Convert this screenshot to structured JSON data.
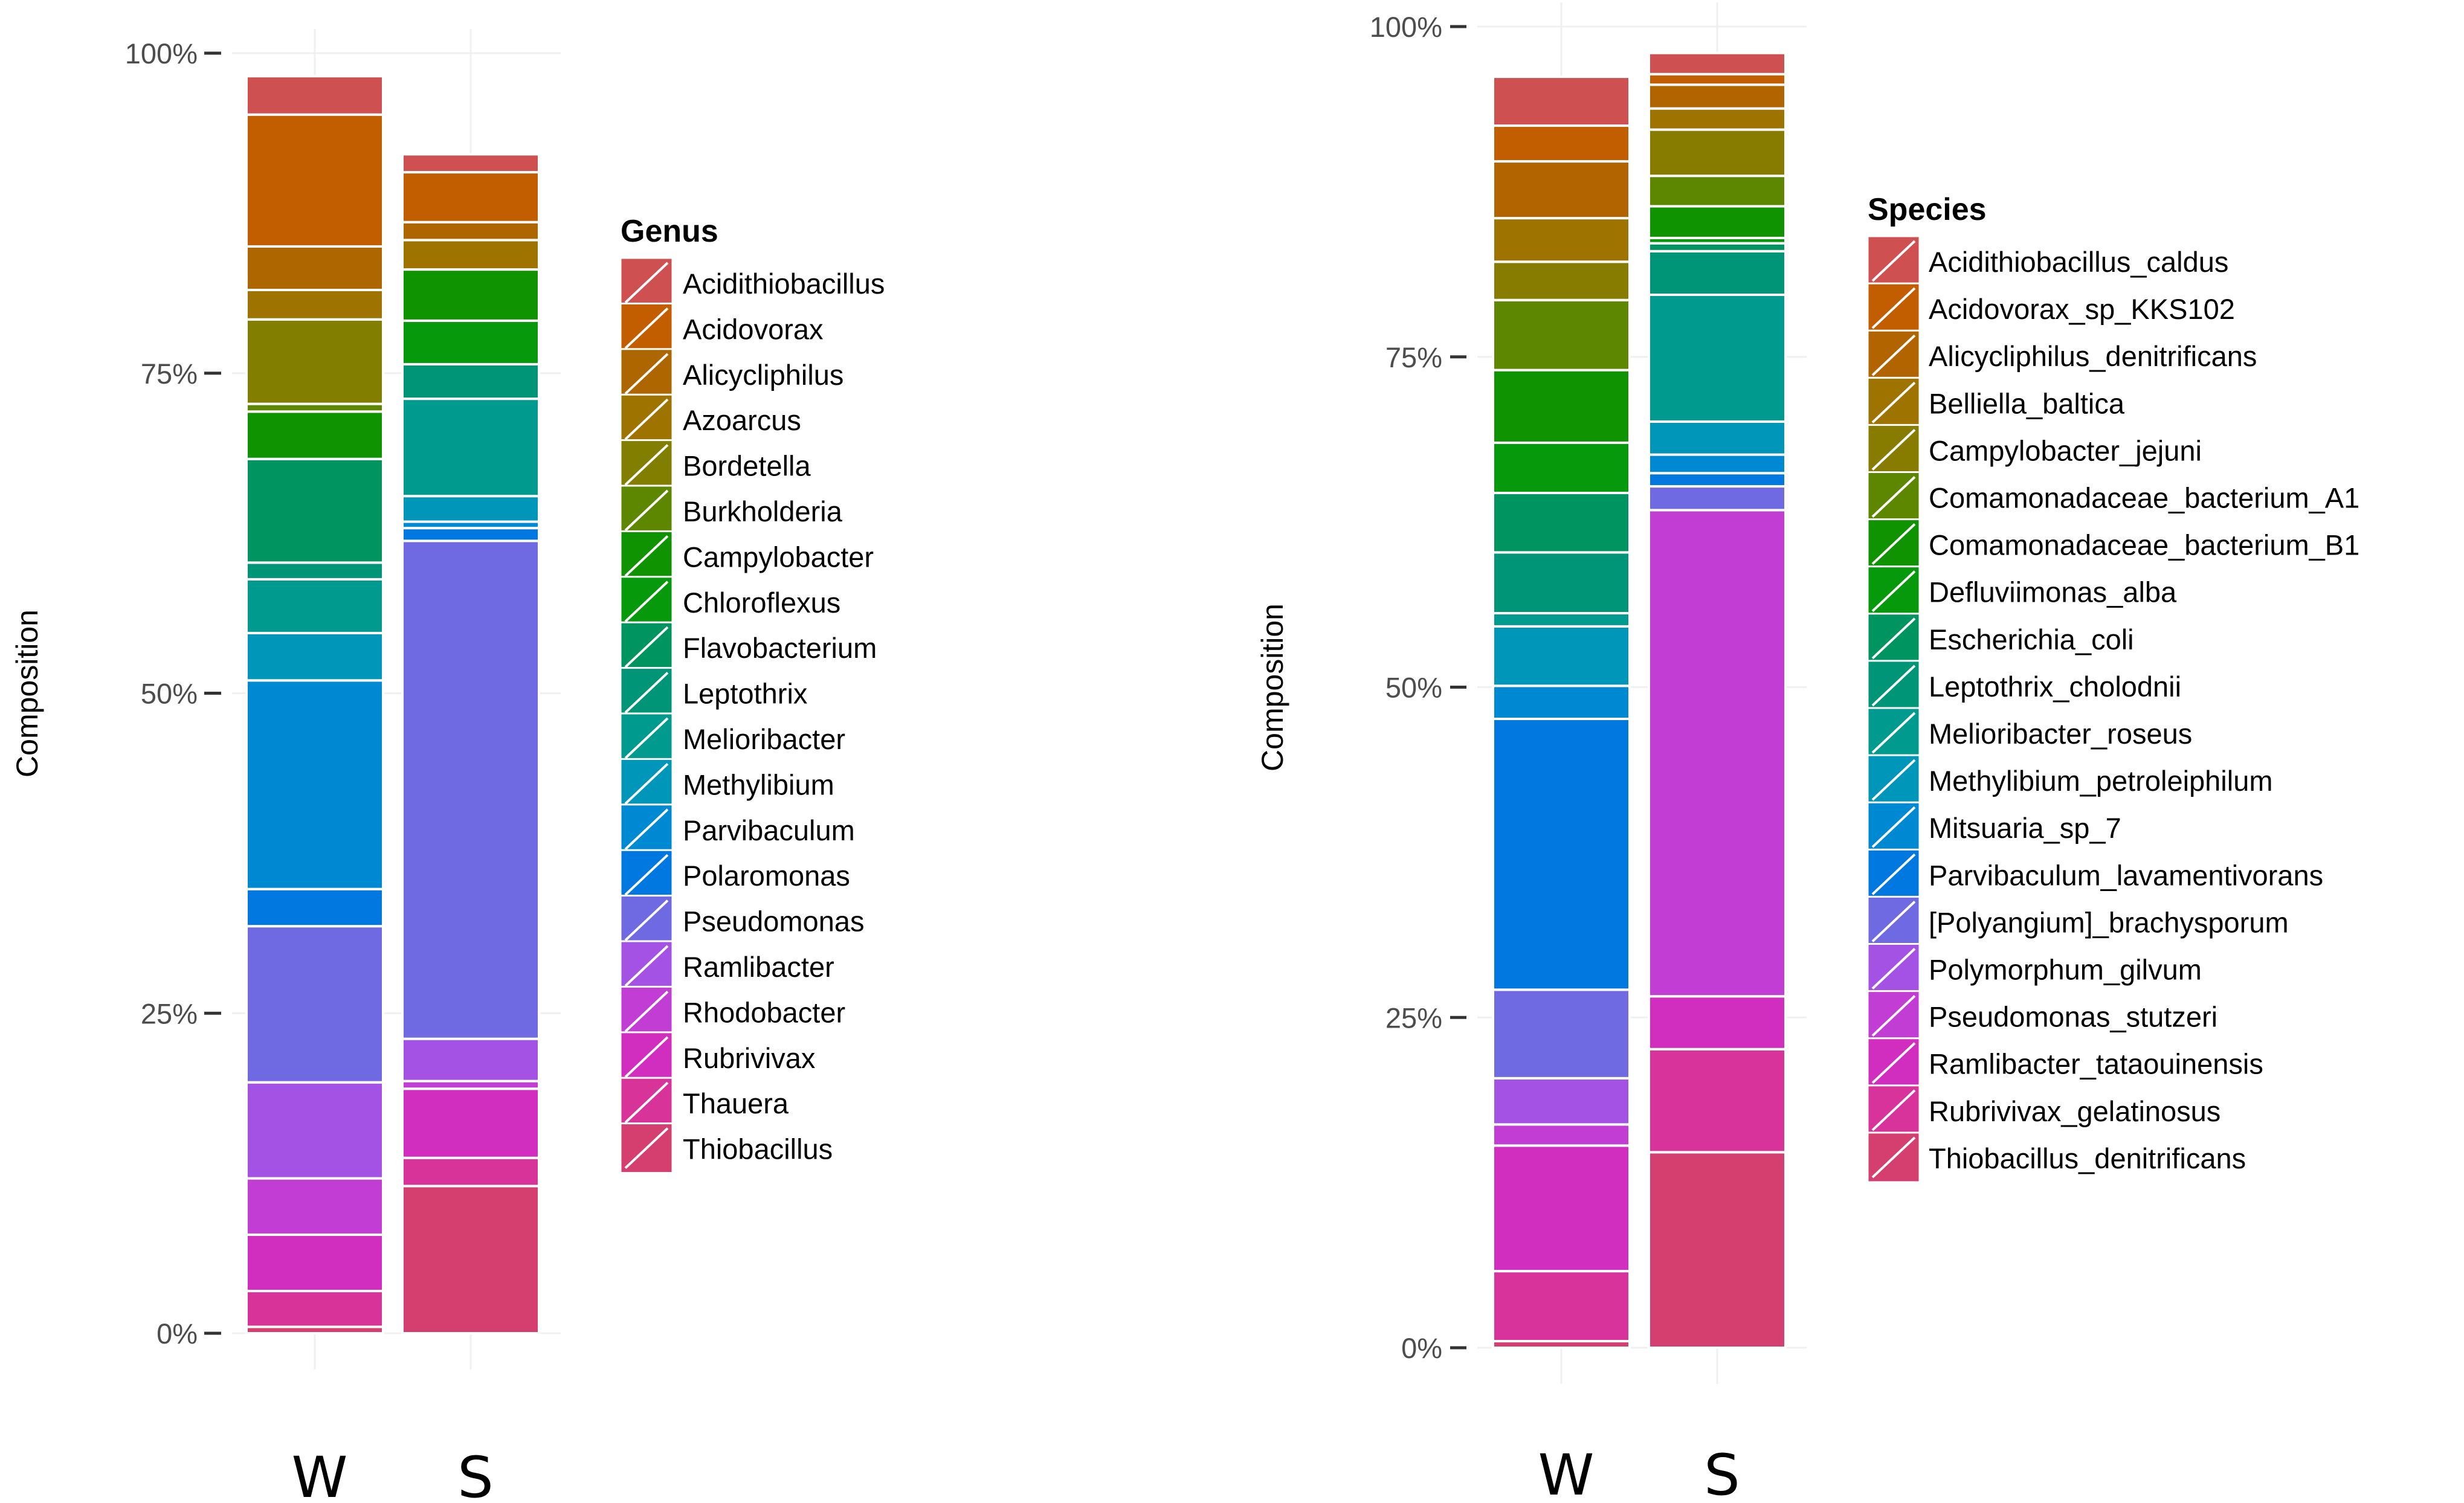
{
  "chart_data": [
    {
      "type": "bar",
      "stacked": true,
      "ylabel": "Composition",
      "ylim": [
        0,
        100
      ],
      "yticks": [
        "0%",
        "25%",
        "50%",
        "75%",
        "100%"
      ],
      "categories": [
        "W",
        "S"
      ],
      "legend_title": "Genus",
      "legend_position": "right",
      "series": [
        {
          "name": "Acidithiobacillus",
          "color": "#CE5050",
          "values": [
            3.0,
            1.4
          ]
        },
        {
          "name": "Acidovorax",
          "color": "#C25D00",
          "values": [
            10.3,
            3.9
          ]
        },
        {
          "name": "Alicycliphilus",
          "color": "#AE6600",
          "values": [
            3.4,
            1.4
          ]
        },
        {
          "name": "Azoarcus",
          "color": "#9F7300",
          "values": [
            2.3,
            2.3
          ]
        },
        {
          "name": "Bordetella",
          "color": "#827E00",
          "values": [
            6.6,
            0.0
          ]
        },
        {
          "name": "Burkholderia",
          "color": "#5E8700",
          "values": [
            0.6,
            0.0
          ]
        },
        {
          "name": "Campylobacter",
          "color": "#0F9300",
          "values": [
            3.7,
            4.0
          ]
        },
        {
          "name": "Chloroflexus",
          "color": "#07990C",
          "values": [
            0.0,
            3.4
          ]
        },
        {
          "name": "Flavobacterium",
          "color": "#009560",
          "values": [
            8.1,
            0.0
          ]
        },
        {
          "name": "Leptothrix",
          "color": "#009576",
          "values": [
            1.3,
            2.7
          ]
        },
        {
          "name": "Melioribacter",
          "color": "#009B8E",
          "values": [
            4.2,
            7.6
          ]
        },
        {
          "name": "Methylibium",
          "color": "#0096B9",
          "values": [
            3.7,
            2.0
          ]
        },
        {
          "name": "Parvibaculum",
          "color": "#0089D3",
          "values": [
            16.3,
            0.5
          ]
        },
        {
          "name": "Polaromonas",
          "color": "#0078E0",
          "values": [
            2.9,
            1.0
          ]
        },
        {
          "name": "Pseudomonas",
          "color": "#706AE2",
          "values": [
            12.2,
            38.9
          ]
        },
        {
          "name": "Ramlibacter",
          "color": "#A452E3",
          "values": [
            7.5,
            3.3
          ]
        },
        {
          "name": "Rhodobacter",
          "color": "#C23DD4",
          "values": [
            4.4,
            0.6
          ]
        },
        {
          "name": "Rubrivivax",
          "color": "#D12DBE",
          "values": [
            4.4,
            5.4
          ]
        },
        {
          "name": "Thauera",
          "color": "#D83398",
          "values": [
            2.8,
            2.2
          ]
        },
        {
          "name": "Thiobacillus",
          "color": "#D53F6F",
          "values": [
            0.5,
            11.5
          ]
        }
      ]
    },
    {
      "type": "bar",
      "stacked": true,
      "ylabel": "Composition",
      "ylim": [
        0,
        100
      ],
      "yticks": [
        "0%",
        "25%",
        "50%",
        "75%",
        "100%"
      ],
      "categories": [
        "W",
        "S"
      ],
      "legend_title": "Species",
      "legend_position": "right",
      "series": [
        {
          "name": "Acidithiobacillus_caldus",
          "color": "#CE5050",
          "values": [
            3.7,
            1.6
          ]
        },
        {
          "name": "Acidovorax_sp_KKS102",
          "color": "#C25D00",
          "values": [
            2.7,
            0.8
          ]
        },
        {
          "name": "Alicycliphilus_denitrificans",
          "color": "#B26400",
          "values": [
            4.3,
            1.8
          ]
        },
        {
          "name": "Belliella_baltica",
          "color": "#9F7300",
          "values": [
            3.3,
            1.6
          ]
        },
        {
          "name": "Campylobacter_jejuni",
          "color": "#877C00",
          "values": [
            2.9,
            3.5
          ]
        },
        {
          "name": "Comamonadaceae_bacterium_A1",
          "color": "#5E8700",
          "values": [
            5.3,
            2.3
          ]
        },
        {
          "name": "Comamonadaceae_bacterium_B1",
          "color": "#0F9300",
          "values": [
            5.5,
            2.4
          ]
        },
        {
          "name": "Defluviimonas_alba",
          "color": "#07990C",
          "values": [
            3.8,
            0.4
          ]
        },
        {
          "name": "Escherichia_coli",
          "color": "#009560",
          "values": [
            4.5,
            0.6
          ]
        },
        {
          "name": "Leptothrix_cholodnii",
          "color": "#009576",
          "values": [
            4.6,
            3.3
          ]
        },
        {
          "name": "Melioribacter_roseus",
          "color": "#009B8E",
          "values": [
            1.0,
            9.6
          ]
        },
        {
          "name": "Methylibium_petroleiphilum",
          "color": "#0096B9",
          "values": [
            4.5,
            2.5
          ]
        },
        {
          "name": "Mitsuaria_sp_7",
          "color": "#0089D3",
          "values": [
            2.5,
            1.4
          ]
        },
        {
          "name": "Parvibaculum_lavamentivorans",
          "color": "#0078E0",
          "values": [
            20.5,
            1.0
          ]
        },
        {
          "name": "[Polyangium]_brachysporum",
          "color": "#706AE2",
          "values": [
            6.7,
            1.8
          ]
        },
        {
          "name": "Polymorphum_gilvum",
          "color": "#A452E3",
          "values": [
            3.5,
            0.0
          ]
        },
        {
          "name": "Pseudomonas_stutzeri",
          "color": "#C23DD4",
          "values": [
            1.6,
            36.8
          ]
        },
        {
          "name": "Ramlibacter_tataouinensis",
          "color": "#D12DBE",
          "values": [
            9.5,
            4.0
          ]
        },
        {
          "name": "Rubrivivax_gelatinosus",
          "color": "#D8339A",
          "values": [
            5.3,
            7.8
          ]
        },
        {
          "name": "Thiobacillus_denitrificans",
          "color": "#D53F6F",
          "values": [
            0.5,
            14.8
          ]
        }
      ]
    }
  ]
}
